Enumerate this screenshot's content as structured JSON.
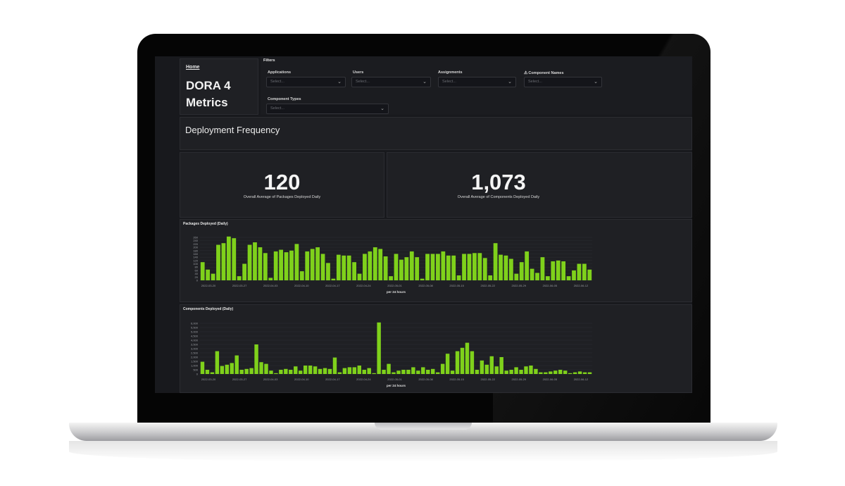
{
  "breadcrumb": {
    "home": "Home"
  },
  "dashboard": {
    "title": "DORA 4 Metrics"
  },
  "filters": {
    "label": "Filters",
    "fields": [
      {
        "label": "Applications",
        "placeholder": "Select..."
      },
      {
        "label": "Users",
        "placeholder": "Select..."
      },
      {
        "label": "Assignments",
        "placeholder": "Select..."
      },
      {
        "label": "Component Names",
        "placeholder": "Select..."
      },
      {
        "label": "Component Types",
        "placeholder": "Select..."
      }
    ]
  },
  "section": {
    "title": "Deployment Frequency"
  },
  "kpis": [
    {
      "value": "120",
      "caption": "Overall Average of Packages Deployed Daily"
    },
    {
      "value": "1,073",
      "caption": "Overall Average of Components Deployed Daily"
    }
  ],
  "colors": {
    "bar": "#7fd11b",
    "screen_bg": "#18191d",
    "panel_bg": "#1f2024"
  },
  "icons": {
    "warning": "warning-triangle-icon",
    "chevron": "chevron-down-icon"
  },
  "chart_data": [
    {
      "type": "bar",
      "title": "Packages Deployed (Daily)",
      "xlabel": "per 24 hours",
      "ylabel": "",
      "ylim": [
        0,
        260
      ],
      "yticks": [
        0,
        20,
        40,
        60,
        80,
        100,
        120,
        140,
        160,
        180,
        200,
        220,
        240,
        260
      ],
      "xticks": [
        "2022-03-20",
        "2022-03-27",
        "2022-04-03",
        "2022-04-10",
        "2022-04-17",
        "2022-04-24",
        "2022-05-01",
        "2022-05-08",
        "2022-05-15",
        "2022-05-22",
        "2022-05-29",
        "2022-06-05",
        "2022-06-12"
      ],
      "values": [
        110,
        65,
        40,
        215,
        225,
        265,
        255,
        25,
        100,
        215,
        230,
        200,
        165,
        15,
        175,
        185,
        170,
        180,
        220,
        55,
        175,
        190,
        200,
        160,
        105,
        10,
        155,
        150,
        150,
        110,
        40,
        160,
        175,
        200,
        190,
        145,
        25,
        160,
        125,
        140,
        175,
        140,
        10,
        160,
        160,
        160,
        175,
        150,
        150,
        30,
        160,
        160,
        165,
        165,
        135,
        30,
        225,
        155,
        150,
        130,
        40,
        110,
        175,
        70,
        45,
        140,
        25,
        115,
        120,
        115,
        25,
        60,
        100,
        100,
        65
      ]
    },
    {
      "type": "bar",
      "title": "Components Deployed (Daily)",
      "xlabel": "per 24 hours",
      "ylabel": "",
      "ylim": [
        0,
        6000
      ],
      "yticks": [
        0,
        500,
        1000,
        1500,
        2000,
        2500,
        3000,
        3500,
        4000,
        4500,
        5000,
        5500,
        6000
      ],
      "xticks": [
        "2022-03-20",
        "2022-03-27",
        "2022-04-03",
        "2022-04-10",
        "2022-04-17",
        "2022-04-24",
        "2022-05-01",
        "2022-05-08",
        "2022-05-15",
        "2022-05-22",
        "2022-05-29",
        "2022-06-05",
        "2022-06-12"
      ],
      "values": [
        1450,
        500,
        200,
        2700,
        950,
        1100,
        1300,
        2200,
        500,
        600,
        700,
        3500,
        1400,
        1200,
        400,
        100,
        500,
        600,
        500,
        900,
        400,
        1000,
        1000,
        900,
        600,
        700,
        600,
        1950,
        200,
        700,
        800,
        800,
        1000,
        500,
        700,
        100,
        6100,
        500,
        1200,
        200,
        400,
        500,
        500,
        800,
        400,
        800,
        500,
        600,
        200,
        1200,
        2400,
        400,
        2700,
        3100,
        3700,
        2700,
        500,
        1600,
        1100,
        2100,
        900,
        2000,
        400,
        500,
        800,
        500,
        900,
        1000,
        600,
        200,
        200,
        300,
        400,
        500,
        400,
        100,
        200,
        300,
        200,
        200
      ]
    }
  ]
}
